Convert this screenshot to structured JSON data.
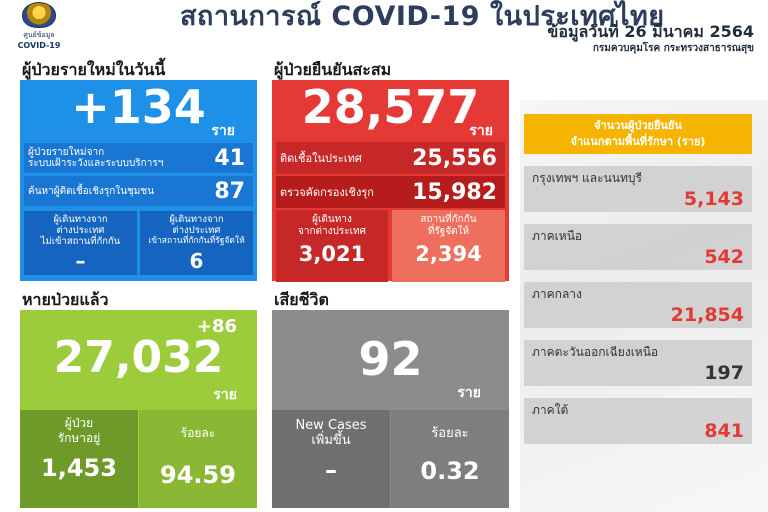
{
  "header": {
    "logo_line1": "ศูนย์ข้อมูล",
    "logo_line2": "COVID-19",
    "title": "สถานการณ์ COVID-19 ในประเทศไทย",
    "date": "ข้อมูลวันที่ 26 มีนาคม 2564",
    "department": "กรมควบคุมโรค กระทรวงสาธารณสุข"
  },
  "new_cases": {
    "heading": "ผู้ป่วยรายใหม่ในวันนี้",
    "total": "+134",
    "unit": "ราย",
    "surveillance_label_1": "ผู้ป่วยรายใหม่จาก",
    "surveillance_label_2": "ระบบเฝ้าระวังและระบบบริการฯ",
    "surveillance_value": "41",
    "community_label": "ค้นหาผู้ติดเชื้อเชิงรุกในชุมชน",
    "community_value": "87",
    "travel_label_1": "ผู้เดินทางจาก",
    "travel_label_2": "ต่างประเทศ",
    "travel_label_3": "ไม่เข้าสถานที่กักกัน",
    "travel_value": "–",
    "quarantine_label_1": "ผู้เดินทางจาก",
    "quarantine_label_2": "ต่างประเทศ",
    "quarantine_label_3": "เข้าสถานที่กักกันที่รัฐจัดให้",
    "quarantine_value": "6"
  },
  "cumulative": {
    "heading": "ผู้ป่วยยืนยันสะสม",
    "total": "28,577",
    "unit": "ราย",
    "domestic_label": "ติดเชื้อในประเทศ",
    "domestic_value": "25,556",
    "proactive_label": "ตรวจคัดกรองเชิงรุก",
    "proactive_value": "15,982",
    "abroad_label_1": "ผู้เดินทาง",
    "abroad_label_2": "จากต่างประเทศ",
    "abroad_value": "3,021",
    "state_q_label_1": "สถานที่กักกัน",
    "state_q_label_2": "ที่รัฐจัดให้",
    "state_q_value": "2,394"
  },
  "recovered": {
    "heading": "หายป่วยแล้ว",
    "delta": "+86",
    "total": "27,032",
    "unit": "ราย",
    "treating_label_1": "ผู้ป่วย",
    "treating_label_2": "รักษาอยู่",
    "treating_value": "1,453",
    "percent_label": "ร้อยละ",
    "percent_value": "94.59"
  },
  "deaths": {
    "heading": "เสียชีวิต",
    "total": "92",
    "unit": "ราย",
    "new_label_1": "New Cases",
    "new_label_2": "เพิ่มขึ้น",
    "new_value": "–",
    "percent_label": "ร้อยละ",
    "percent_value": "0.32"
  },
  "regions": {
    "heading_1": "จำนวนผู้ป่วยยืนยัน",
    "heading_2": "จำแนกตามพื้นที่รักษา (ราย)",
    "items": [
      {
        "label": "กรุงเทพฯ และนนทบุรี",
        "value": "5,143",
        "color": "#e53935"
      },
      {
        "label": "ภาคเหนือ",
        "value": "542",
        "color": "#e53935"
      },
      {
        "label": "ภาคกลาง",
        "value": "21,854",
        "color": "#e53935"
      },
      {
        "label": "ภาคตะวันออกเฉียงเหนือ",
        "value": "197",
        "color": "#333333"
      },
      {
        "label": "ภาคใต้",
        "value": "841",
        "color": "#e53935"
      }
    ]
  }
}
